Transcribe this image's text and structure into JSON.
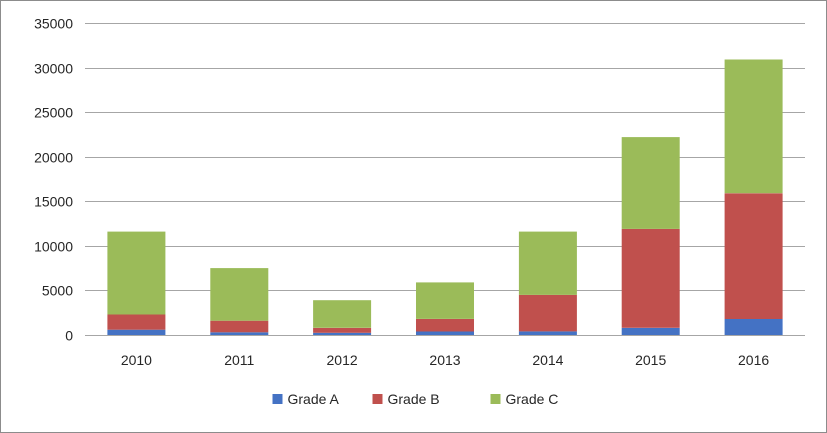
{
  "chart_data": {
    "type": "bar",
    "stacked": true,
    "title": "",
    "xlabel": "",
    "ylabel": "",
    "categories": [
      "2010",
      "2011",
      "2012",
      "2013",
      "2014",
      "2015",
      "2016"
    ],
    "series": [
      {
        "name": "Grade A",
        "color": "#4472C4",
        "values": [
          600,
          300,
          250,
          400,
          400,
          800,
          1800
        ]
      },
      {
        "name": "Grade B",
        "color": "#C0504D",
        "values": [
          1700,
          1300,
          550,
          1400,
          4100,
          11100,
          14100
        ]
      },
      {
        "name": "Grade C",
        "color": "#9BBB59",
        "values": [
          9300,
          5900,
          3100,
          4100,
          7100,
          10300,
          15000
        ]
      }
    ],
    "ylim": [
      0,
      35000
    ],
    "yticks": [
      "0",
      "5000",
      "10000",
      "15000",
      "20000",
      "25000",
      "30000",
      "35000"
    ],
    "grid": true,
    "legend_position": "bottom",
    "gridline_color": "#a6a6a6",
    "axis_color": "#a6a6a6"
  }
}
